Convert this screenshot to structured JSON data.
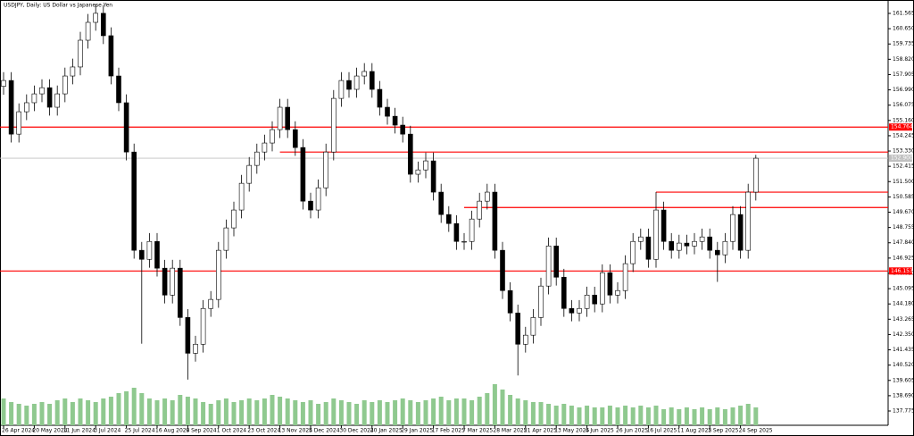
{
  "chart_data": {
    "type": "candlestick",
    "title": "USDJPY, Daily: US Dollar vs Japanese Yen",
    "categories": [
      "26 Apr 2024",
      null,
      null,
      null,
      "20 May 2024",
      null,
      null,
      null,
      "11 Jun 2024",
      null,
      null,
      null,
      "3 Jul 2024",
      null,
      null,
      null,
      "25 Jul 2024",
      null,
      null,
      null,
      "16 Aug 2024",
      null,
      null,
      null,
      "9 Sep 2024",
      null,
      null,
      null,
      "1 Oct 2024",
      null,
      null,
      null,
      "23 Oct 2024",
      null,
      null,
      null,
      "13 Nov 2024",
      null,
      null,
      null,
      "5 Dec 2024",
      null,
      null,
      null,
      "30 Dec 2024",
      null,
      null,
      null,
      "20 Jan 2025",
      null,
      null,
      null,
      "29 Jan 2025",
      null,
      null,
      null,
      "17 Feb 2025",
      null,
      null,
      null,
      "7 Mar 2025",
      null,
      null,
      null,
      "28 Mar 2025",
      null,
      null,
      null,
      "21 Apr 2025",
      null,
      null,
      null,
      "13 May 2025",
      null,
      null,
      null,
      "4 Jun 2025",
      null,
      null,
      null,
      "26 Jun 2025",
      null,
      null,
      null,
      "16 Jul 2025",
      null,
      null,
      null,
      "11 Aug 2025",
      null,
      null,
      null,
      "2 Sep 2025",
      null,
      null,
      null,
      "24 Sep 2025",
      null,
      null
    ],
    "open": [
      157.2,
      157.55,
      154.34,
      155.68,
      156.22,
      156.75,
      157.12,
      155.95,
      156.75,
      157.82,
      158.36,
      159.96,
      161.03,
      161.57,
      160.23,
      157.82,
      156.22,
      153.27,
      147.39,
      146.85,
      147.92,
      146.32,
      144.71,
      146.32,
      143.37,
      141.23,
      141.77,
      143.91,
      144.45,
      147.39,
      148.73,
      149.8,
      151.4,
      152.47,
      153.27,
      153.81,
      154.61,
      155.95,
      154.61,
      153.54,
      150.33,
      149.8,
      151.13,
      153.27,
      156.48,
      157.55,
      157.02,
      157.82,
      158.09,
      157.02,
      155.95,
      155.41,
      154.88,
      154.34,
      151.94,
      152.2,
      152.74,
      150.87,
      149.53,
      148.99,
      147.92,
      147.92,
      149.26,
      150.33,
      150.87,
      147.39,
      144.98,
      143.64,
      141.77,
      142.31,
      143.37,
      145.25,
      147.65,
      145.78,
      143.91,
      143.64,
      143.91,
      144.71,
      144.18,
      146.05,
      144.71,
      144.98,
      146.59,
      147.92,
      148.19,
      146.85,
      149.8,
      147.92,
      147.39,
      147.82,
      147.65,
      147.92,
      148.19,
      147.39,
      147.12,
      147.92,
      149.53,
      147.39,
      150.87
    ],
    "high": [
      158.05,
      158.05,
      156.18,
      156.72,
      157.25,
      157.62,
      157.62,
      157.25,
      158.32,
      158.86,
      160.46,
      161.53,
      162.07,
      162.07,
      160.73,
      158.32,
      156.72,
      153.77,
      147.89,
      148.42,
      148.42,
      146.82,
      146.82,
      146.82,
      143.87,
      142.27,
      144.41,
      144.95,
      147.89,
      149.23,
      150.3,
      151.9,
      152.97,
      153.77,
      154.31,
      155.11,
      156.45,
      156.45,
      155.11,
      154.04,
      150.83,
      151.63,
      153.77,
      156.98,
      158.05,
      158.05,
      158.32,
      158.59,
      158.59,
      157.52,
      156.45,
      155.91,
      155.38,
      154.84,
      152.7,
      153.24,
      153.24,
      151.37,
      150.03,
      149.49,
      148.42,
      149.76,
      150.83,
      151.37,
      151.37,
      147.89,
      145.48,
      144.14,
      142.81,
      143.87,
      145.75,
      148.15,
      148.15,
      146.28,
      144.41,
      144.41,
      145.21,
      145.21,
      146.55,
      146.55,
      145.48,
      147.09,
      148.42,
      148.69,
      148.69,
      150.87,
      150.3,
      148.42,
      148.32,
      148.32,
      148.42,
      148.69,
      148.69,
      147.89,
      148.42,
      150.03,
      150.03,
      151.37,
      153.1
    ],
    "low": [
      156.7,
      153.84,
      153.84,
      155.18,
      155.72,
      156.25,
      155.45,
      155.45,
      156.25,
      157.32,
      157.86,
      159.46,
      160.53,
      159.73,
      157.32,
      155.72,
      152.77,
      146.89,
      141.8,
      146.35,
      145.82,
      144.21,
      144.21,
      142.87,
      139.65,
      140.73,
      141.27,
      143.41,
      143.95,
      146.89,
      148.23,
      149.3,
      150.9,
      151.97,
      152.77,
      153.31,
      154.11,
      154.11,
      153.04,
      149.83,
      149.3,
      149.3,
      150.63,
      152.77,
      155.98,
      156.52,
      156.52,
      157.32,
      156.52,
      155.45,
      154.91,
      154.38,
      153.84,
      151.44,
      151.44,
      151.7,
      150.37,
      149.03,
      148.49,
      147.42,
      147.42,
      147.42,
      148.76,
      149.83,
      146.89,
      144.48,
      143.14,
      139.9,
      141.27,
      141.81,
      142.87,
      144.75,
      145.28,
      143.41,
      143.14,
      143.14,
      143.41,
      143.68,
      143.68,
      144.21,
      144.21,
      144.48,
      146.09,
      147.42,
      146.35,
      146.35,
      147.42,
      146.89,
      146.89,
      147.15,
      147.15,
      147.42,
      146.89,
      145.5,
      146.62,
      147.42,
      146.89,
      146.89,
      150.37
    ],
    "close": [
      157.55,
      154.34,
      155.68,
      156.22,
      156.75,
      157.12,
      155.95,
      156.75,
      157.82,
      158.36,
      159.96,
      161.03,
      161.57,
      160.23,
      157.82,
      156.22,
      153.27,
      147.39,
      146.85,
      147.92,
      146.32,
      144.71,
      146.32,
      143.37,
      141.23,
      141.77,
      143.91,
      144.45,
      147.39,
      148.73,
      149.8,
      151.4,
      152.47,
      153.27,
      153.81,
      154.61,
      155.95,
      154.61,
      153.54,
      150.33,
      149.8,
      151.13,
      153.27,
      156.48,
      157.55,
      157.02,
      157.82,
      158.09,
      157.02,
      155.95,
      155.41,
      154.88,
      154.34,
      151.94,
      152.2,
      152.74,
      150.87,
      149.53,
      148.99,
      147.92,
      147.92,
      149.26,
      150.33,
      150.87,
      147.39,
      144.98,
      143.64,
      141.77,
      142.31,
      143.37,
      145.25,
      147.65,
      145.78,
      143.91,
      143.64,
      143.91,
      144.71,
      144.18,
      146.05,
      144.71,
      144.98,
      146.59,
      147.92,
      148.19,
      146.85,
      149.8,
      147.92,
      147.39,
      147.82,
      147.65,
      147.92,
      148.19,
      147.39,
      147.12,
      147.92,
      149.53,
      147.39,
      150.87,
      152.9
    ],
    "volume": [
      30,
      26,
      24,
      22,
      24,
      26,
      24,
      28,
      30,
      26,
      30,
      28,
      26,
      30,
      32,
      36,
      38,
      42,
      36,
      30,
      28,
      30,
      28,
      34,
      32,
      30,
      26,
      24,
      28,
      30,
      26,
      28,
      30,
      28,
      30,
      34,
      32,
      30,
      28,
      26,
      28,
      24,
      26,
      30,
      28,
      26,
      24,
      28,
      26,
      28,
      26,
      28,
      30,
      28,
      26,
      28,
      30,
      32,
      28,
      30,
      30,
      28,
      32,
      36,
      46,
      40,
      34,
      30,
      28,
      26,
      26,
      24,
      22,
      24,
      22,
      20,
      22,
      20,
      20,
      22,
      20,
      22,
      20,
      22,
      20,
      22,
      18,
      20,
      18,
      20,
      18,
      20,
      18,
      20,
      18,
      20,
      22,
      24,
      20
    ],
    "volume_color": "#8fc98f",
    "ylim": [
      136.92,
      162.26
    ],
    "yticks": [
      161.565,
      {
        "value": 160.65,
        "label": "160.650"
      },
      159.735,
      {
        "value": 158.82,
        "label": "158.820"
      },
      157.905,
      {
        "value": 156.99,
        "label": "156.990"
      },
      156.075,
      {
        "value": 155.16,
        "label": "155.160"
      },
      154.245,
      {
        "value": 153.33,
        "label": "153.330"
      },
      152.415,
      {
        "value": 151.5,
        "label": "151.500"
      },
      150.585,
      {
        "value": 149.67,
        "label": "149.670"
      },
      148.755,
      {
        "value": 147.84,
        "label": "147.840"
      },
      146.925,
      {
        "value": 146.01,
        "label": "146.010"
      },
      145.095,
      {
        "value": 144.18,
        "label": "144.180"
      },
      143.265,
      {
        "value": 142.35,
        "label": "142.350"
      },
      141.435,
      {
        "value": 140.52,
        "label": "140.520"
      },
      139.605,
      {
        "value": 138.69,
        "label": "138.690"
      },
      137.775
    ],
    "levels": [
      {
        "value": 154.764,
        "label": "154.764",
        "color": "#ff0000"
      },
      {
        "value": 146.153,
        "label": "146.153",
        "color": "#ff0000"
      },
      {
        "value": 153.27,
        "x_start": 36,
        "color": "#ff0000"
      },
      {
        "value": 150.87,
        "x_start": 85,
        "color": "#ff0000"
      },
      {
        "value": 149.95,
        "x_start": 60,
        "color": "#ff0000"
      }
    ],
    "current_price": {
      "value": 152.9,
      "label": "152.900",
      "color": "#c0c0c0"
    },
    "up_color": "#ffffff",
    "down_color": "#000000"
  }
}
